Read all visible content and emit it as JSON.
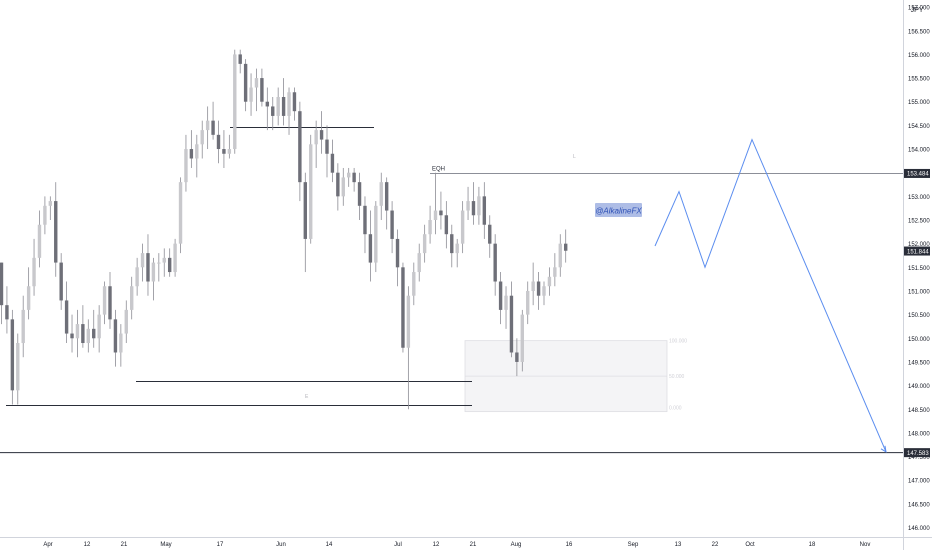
{
  "chart_data": {
    "type": "candlestick",
    "currency_label": "JPY",
    "watermark": "@AlkalineFX",
    "colors": {
      "up": "#c8c8cc",
      "down": "#6e6f78",
      "wick": "#8c8c94",
      "line": "#2a2e39",
      "projection": "#5b8def",
      "watermark_bg": "#aebde6",
      "watermark_text": "#2c4fb5",
      "price_tag": "#2a2e39",
      "price_tag_text": "#ffffff"
    },
    "y_axis": {
      "ylim": [
        145.8,
        157.15
      ],
      "ticks": [
        "157.000",
        "156.500",
        "156.000",
        "155.500",
        "155.000",
        "154.500",
        "154.000",
        "153.500",
        "153.000",
        "152.500",
        "152.000",
        "151.500",
        "151.000",
        "150.500",
        "150.000",
        "149.500",
        "149.000",
        "148.500",
        "148.000",
        "147.500",
        "147.000",
        "146.500",
        "146.000"
      ]
    },
    "price_tags": [
      {
        "label": "153.484",
        "value": 153.484
      },
      {
        "label": "151.844",
        "value": 151.844
      },
      {
        "label": "147.583",
        "value": 147.583
      }
    ],
    "x_axis": {
      "ticks": [
        "Apr",
        "12",
        "21",
        "May",
        "17",
        "Jun",
        "14",
        "Jul",
        "12",
        "21",
        "Aug",
        "16",
        "Sep",
        "13",
        "22",
        "Oct",
        "18",
        "Nov"
      ]
    },
    "annotations": {
      "eqh_label": "EQH",
      "eqh_level": 153.484,
      "marker_low_label": "E",
      "marker_high_label": "L",
      "box_top_label": "100.000",
      "box_mid_label": "50.000",
      "box_bottom_label": "0.000",
      "box_top_value": 149.95,
      "box_bottom_value": 148.45,
      "level_149": 149.05,
      "level_1485": 148.55,
      "level_1476": 147.583
    },
    "projection": [
      151.95,
      153.1,
      151.5,
      154.2,
      147.6
    ],
    "candles": [
      {
        "o": 151.6,
        "h": 151.6,
        "l": 150.3,
        "c": 150.7
      },
      {
        "o": 150.7,
        "h": 151.1,
        "l": 150.1,
        "c": 150.4
      },
      {
        "o": 150.4,
        "h": 150.6,
        "l": 148.6,
        "c": 148.9
      },
      {
        "o": 148.9,
        "h": 150.1,
        "l": 148.6,
        "c": 149.9
      },
      {
        "o": 149.9,
        "h": 150.9,
        "l": 149.6,
        "c": 150.6
      },
      {
        "o": 150.6,
        "h": 151.5,
        "l": 150.4,
        "c": 151.1
      },
      {
        "o": 151.1,
        "h": 152.1,
        "l": 150.9,
        "c": 151.7
      },
      {
        "o": 151.7,
        "h": 152.7,
        "l": 151.5,
        "c": 152.4
      },
      {
        "o": 152.4,
        "h": 153.0,
        "l": 152.2,
        "c": 152.8
      },
      {
        "o": 152.8,
        "h": 153.0,
        "l": 152.5,
        "c": 152.9
      },
      {
        "o": 152.9,
        "h": 153.3,
        "l": 151.3,
        "c": 151.6
      },
      {
        "o": 151.6,
        "h": 151.8,
        "l": 150.6,
        "c": 150.8
      },
      {
        "o": 150.8,
        "h": 151.2,
        "l": 149.9,
        "c": 150.1
      },
      {
        "o": 150.1,
        "h": 150.5,
        "l": 149.7,
        "c": 150.0
      },
      {
        "o": 150.0,
        "h": 150.6,
        "l": 149.6,
        "c": 150.3
      },
      {
        "o": 150.3,
        "h": 150.7,
        "l": 149.8,
        "c": 149.9
      },
      {
        "o": 149.9,
        "h": 150.4,
        "l": 149.7,
        "c": 150.2
      },
      {
        "o": 150.2,
        "h": 150.6,
        "l": 149.8,
        "c": 150.0
      },
      {
        "o": 150.0,
        "h": 150.7,
        "l": 149.7,
        "c": 150.5
      },
      {
        "o": 150.5,
        "h": 151.2,
        "l": 150.3,
        "c": 151.1
      },
      {
        "o": 151.1,
        "h": 151.4,
        "l": 150.2,
        "c": 150.4
      },
      {
        "o": 150.4,
        "h": 150.6,
        "l": 149.4,
        "c": 149.7
      },
      {
        "o": 149.7,
        "h": 150.3,
        "l": 149.4,
        "c": 150.1
      },
      {
        "o": 150.1,
        "h": 150.8,
        "l": 149.9,
        "c": 150.6
      },
      {
        "o": 150.6,
        "h": 151.3,
        "l": 150.4,
        "c": 151.1
      },
      {
        "o": 151.1,
        "h": 151.7,
        "l": 150.9,
        "c": 151.5
      },
      {
        "o": 151.5,
        "h": 152.0,
        "l": 151.2,
        "c": 151.8
      },
      {
        "o": 151.8,
        "h": 152.2,
        "l": 150.9,
        "c": 151.2
      },
      {
        "o": 151.2,
        "h": 151.7,
        "l": 150.8,
        "c": 151.6
      },
      {
        "o": 151.6,
        "h": 151.8,
        "l": 151.2,
        "c": 151.6
      },
      {
        "o": 151.6,
        "h": 151.9,
        "l": 151.3,
        "c": 151.7
      },
      {
        "o": 151.7,
        "h": 151.9,
        "l": 151.3,
        "c": 151.4
      },
      {
        "o": 151.4,
        "h": 152.1,
        "l": 151.3,
        "c": 152.0
      },
      {
        "o": 152.0,
        "h": 153.4,
        "l": 151.8,
        "c": 153.3
      },
      {
        "o": 153.3,
        "h": 154.3,
        "l": 153.1,
        "c": 154.0
      },
      {
        "o": 154.0,
        "h": 154.4,
        "l": 153.6,
        "c": 153.8
      },
      {
        "o": 153.8,
        "h": 154.3,
        "l": 153.4,
        "c": 154.1
      },
      {
        "o": 154.1,
        "h": 154.6,
        "l": 153.8,
        "c": 154.4
      },
      {
        "o": 154.4,
        "h": 154.9,
        "l": 154.0,
        "c": 154.6
      },
      {
        "o": 154.6,
        "h": 155.0,
        "l": 154.2,
        "c": 154.3
      },
      {
        "o": 154.3,
        "h": 154.6,
        "l": 153.7,
        "c": 154.0
      },
      {
        "o": 154.0,
        "h": 154.4,
        "l": 153.6,
        "c": 153.9
      },
      {
        "o": 153.9,
        "h": 154.3,
        "l": 153.8,
        "c": 154.0
      },
      {
        "o": 154.0,
        "h": 156.1,
        "l": 153.9,
        "c": 156.0
      },
      {
        "o": 156.0,
        "h": 156.1,
        "l": 155.6,
        "c": 155.8
      },
      {
        "o": 155.8,
        "h": 155.9,
        "l": 154.8,
        "c": 155.0
      },
      {
        "o": 155.0,
        "h": 155.6,
        "l": 154.7,
        "c": 155.3
      },
      {
        "o": 155.3,
        "h": 155.7,
        "l": 154.8,
        "c": 155.5
      },
      {
        "o": 155.5,
        "h": 155.7,
        "l": 154.9,
        "c": 155.0
      },
      {
        "o": 155.0,
        "h": 155.3,
        "l": 154.4,
        "c": 154.9
      },
      {
        "o": 154.9,
        "h": 155.1,
        "l": 154.4,
        "c": 154.7
      },
      {
        "o": 154.7,
        "h": 155.3,
        "l": 154.5,
        "c": 155.1
      },
      {
        "o": 155.1,
        "h": 155.5,
        "l": 154.5,
        "c": 154.7
      },
      {
        "o": 154.7,
        "h": 155.3,
        "l": 154.3,
        "c": 155.2
      },
      {
        "o": 155.2,
        "h": 155.3,
        "l": 154.6,
        "c": 154.8
      },
      {
        "o": 154.8,
        "h": 155.0,
        "l": 152.9,
        "c": 153.3
      },
      {
        "o": 153.3,
        "h": 153.5,
        "l": 151.4,
        "c": 152.1
      },
      {
        "o": 152.1,
        "h": 154.3,
        "l": 152.0,
        "c": 154.1
      },
      {
        "o": 154.1,
        "h": 154.6,
        "l": 153.6,
        "c": 154.4
      },
      {
        "o": 154.4,
        "h": 154.8,
        "l": 153.9,
        "c": 154.2
      },
      {
        "o": 154.2,
        "h": 154.5,
        "l": 153.4,
        "c": 153.9
      },
      {
        "o": 153.9,
        "h": 154.2,
        "l": 153.3,
        "c": 153.5
      },
      {
        "o": 153.5,
        "h": 153.7,
        "l": 152.7,
        "c": 153.0
      },
      {
        "o": 153.0,
        "h": 153.6,
        "l": 152.8,
        "c": 153.4
      },
      {
        "o": 153.4,
        "h": 153.6,
        "l": 153.2,
        "c": 153.5
      },
      {
        "o": 153.5,
        "h": 153.6,
        "l": 153.1,
        "c": 153.3
      },
      {
        "o": 153.3,
        "h": 153.5,
        "l": 152.5,
        "c": 152.8
      },
      {
        "o": 152.8,
        "h": 153.0,
        "l": 151.8,
        "c": 152.2
      },
      {
        "o": 152.2,
        "h": 152.7,
        "l": 151.2,
        "c": 151.6
      },
      {
        "o": 151.6,
        "h": 152.9,
        "l": 151.4,
        "c": 152.8
      },
      {
        "o": 152.8,
        "h": 153.5,
        "l": 152.5,
        "c": 153.3
      },
      {
        "o": 153.3,
        "h": 153.4,
        "l": 152.3,
        "c": 152.7
      },
      {
        "o": 152.7,
        "h": 152.9,
        "l": 151.8,
        "c": 152.1
      },
      {
        "o": 152.1,
        "h": 152.3,
        "l": 151.1,
        "c": 151.5
      },
      {
        "o": 151.5,
        "h": 151.6,
        "l": 149.7,
        "c": 149.8
      },
      {
        "o": 149.8,
        "h": 151.1,
        "l": 148.5,
        "c": 150.9
      },
      {
        "o": 150.9,
        "h": 151.6,
        "l": 150.7,
        "c": 151.4
      },
      {
        "o": 151.4,
        "h": 152.0,
        "l": 151.2,
        "c": 151.8
      },
      {
        "o": 151.8,
        "h": 152.4,
        "l": 151.6,
        "c": 152.2
      },
      {
        "o": 152.2,
        "h": 152.8,
        "l": 152.0,
        "c": 152.5
      },
      {
        "o": 152.5,
        "h": 153.5,
        "l": 152.2,
        "c": 152.7
      },
      {
        "o": 152.7,
        "h": 153.1,
        "l": 152.3,
        "c": 152.6
      },
      {
        "o": 152.6,
        "h": 152.9,
        "l": 151.9,
        "c": 152.2
      },
      {
        "o": 152.2,
        "h": 152.4,
        "l": 151.5,
        "c": 151.8
      },
      {
        "o": 151.8,
        "h": 152.1,
        "l": 151.5,
        "c": 152.0
      },
      {
        "o": 152.0,
        "h": 152.9,
        "l": 151.8,
        "c": 152.7
      },
      {
        "o": 152.7,
        "h": 153.2,
        "l": 152.5,
        "c": 152.9
      },
      {
        "o": 152.9,
        "h": 153.3,
        "l": 152.4,
        "c": 152.6
      },
      {
        "o": 152.6,
        "h": 153.2,
        "l": 152.4,
        "c": 153.0
      },
      {
        "o": 153.0,
        "h": 153.3,
        "l": 152.1,
        "c": 152.4
      },
      {
        "o": 152.4,
        "h": 152.6,
        "l": 151.7,
        "c": 152.0
      },
      {
        "o": 152.0,
        "h": 152.2,
        "l": 150.9,
        "c": 151.2
      },
      {
        "o": 151.2,
        "h": 151.4,
        "l": 150.3,
        "c": 150.6
      },
      {
        "o": 150.6,
        "h": 151.1,
        "l": 150.2,
        "c": 150.9
      },
      {
        "o": 150.9,
        "h": 151.2,
        "l": 149.6,
        "c": 149.7
      },
      {
        "o": 149.7,
        "h": 150.0,
        "l": 149.2,
        "c": 149.5
      },
      {
        "o": 149.5,
        "h": 150.6,
        "l": 149.3,
        "c": 150.5
      },
      {
        "o": 150.5,
        "h": 151.2,
        "l": 150.3,
        "c": 151.0
      },
      {
        "o": 151.0,
        "h": 151.6,
        "l": 150.7,
        "c": 151.2
      },
      {
        "o": 151.2,
        "h": 151.4,
        "l": 150.6,
        "c": 150.9
      },
      {
        "o": 150.9,
        "h": 151.2,
        "l": 150.7,
        "c": 151.1
      },
      {
        "o": 151.1,
        "h": 151.5,
        "l": 150.9,
        "c": 151.3
      },
      {
        "o": 151.3,
        "h": 151.8,
        "l": 151.1,
        "c": 151.5
      },
      {
        "o": 151.5,
        "h": 152.2,
        "l": 151.3,
        "c": 152.0
      },
      {
        "o": 152.0,
        "h": 152.3,
        "l": 151.6,
        "c": 151.85
      }
    ]
  }
}
